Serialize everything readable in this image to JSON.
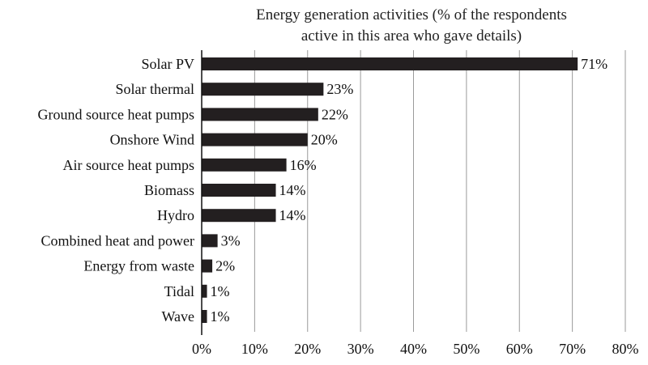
{
  "chart_data": {
    "type": "bar",
    "orientation": "horizontal",
    "title_lines": [
      "Energy generation activities (% of the respondents",
      "active in this area who gave details)"
    ],
    "categories": [
      "Solar PV",
      "Solar thermal",
      "Ground source heat pumps",
      "Onshore Wind",
      "Air source heat pumps",
      "Biomass",
      "Hydro",
      "Combined heat and power",
      "Energy from waste",
      "Tidal",
      "Wave"
    ],
    "values": [
      71,
      23,
      22,
      20,
      16,
      14,
      14,
      3,
      2,
      1,
      1
    ],
    "value_labels": [
      "71%",
      "23%",
      "22%",
      "20%",
      "16%",
      "14%",
      "14%",
      "3%",
      "2%",
      "1%",
      "1%"
    ],
    "x_ticks": [
      0,
      10,
      20,
      30,
      40,
      50,
      60,
      70,
      80
    ],
    "x_tick_labels": [
      "0%",
      "10%",
      "20%",
      "30%",
      "40%",
      "50%",
      "60%",
      "70%",
      "80%"
    ],
    "xlim": [
      0,
      80
    ],
    "grid": "vertical",
    "legend": "none",
    "bar_color": "#231f20",
    "grid_color": "#9a9a9a",
    "axis_color": "#111111"
  }
}
